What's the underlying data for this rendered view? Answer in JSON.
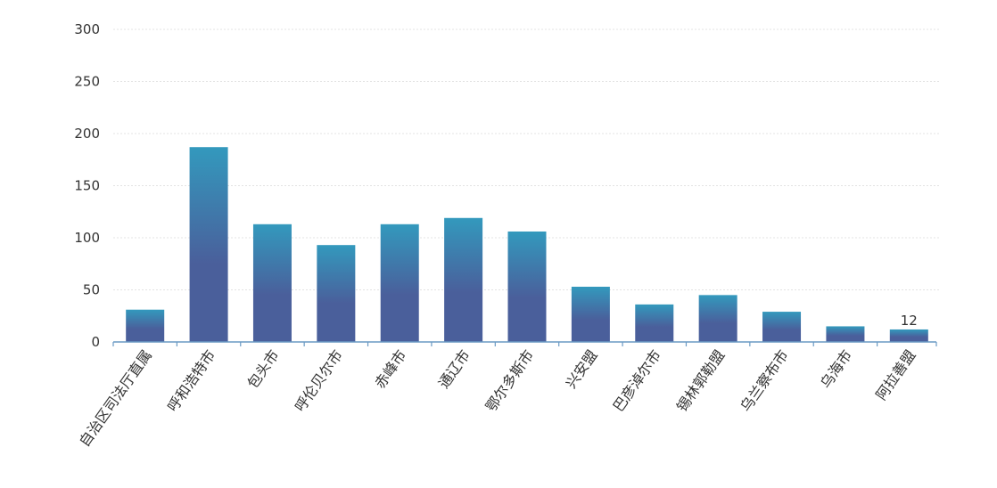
{
  "chart_data": {
    "type": "bar",
    "categories": [
      "自治区司法厅直属",
      "呼和浩特市",
      "包头市",
      "呼伦贝尔市",
      "赤峰市",
      "通辽市",
      "鄂尔多斯市",
      "兴安盟",
      "巴彦淖尔市",
      "锡林郭勒盟",
      "乌兰察布市",
      "乌海市",
      "阿拉善盟"
    ],
    "values": [
      31,
      187,
      113,
      93,
      113,
      119,
      106,
      53,
      36,
      45,
      29,
      15,
      12
    ],
    "data_labels": [
      null,
      null,
      null,
      null,
      null,
      null,
      null,
      null,
      null,
      null,
      null,
      null,
      "12"
    ],
    "ylim": [
      0,
      300
    ],
    "y_ticks": [
      "0",
      "50",
      "100",
      "150",
      "200",
      "250",
      "300"
    ],
    "grid": true,
    "colors": {
      "bar_top": "#3399bd",
      "bar_bottom": "#4a5f9b",
      "axis": "#6a9ac4",
      "grid": "#e3e3e3"
    }
  }
}
